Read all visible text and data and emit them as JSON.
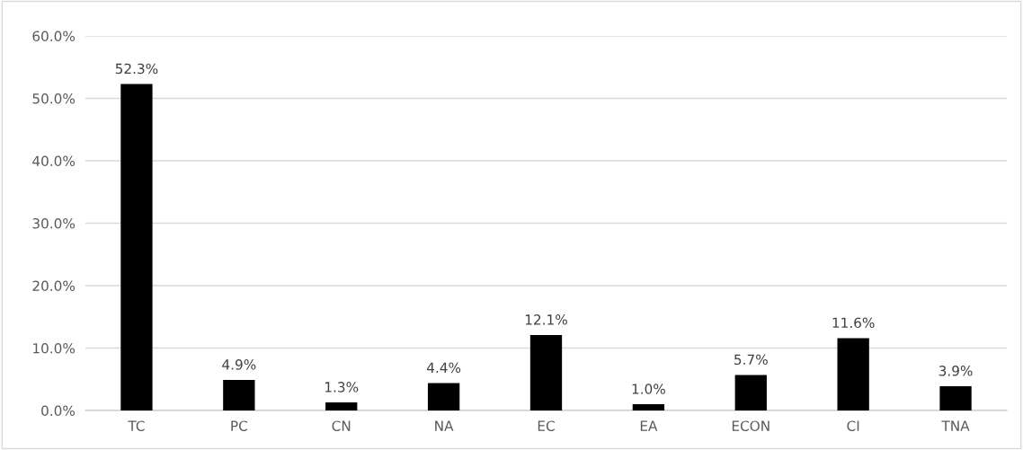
{
  "chart_data": {
    "type": "bar",
    "categories": [
      "TC",
      "PC",
      "CN",
      "NA",
      "EC",
      "EA",
      "ECON",
      "CI",
      "TNA"
    ],
    "values": [
      52.3,
      4.9,
      1.3,
      4.4,
      12.1,
      1.0,
      5.7,
      11.6,
      3.9
    ],
    "value_labels": [
      "52.3%",
      "4.9%",
      "1.3%",
      "4.4%",
      "12.1%",
      "1.0%",
      "5.7%",
      "11.6%",
      "3.9%"
    ],
    "color": "#000000",
    "ylim": [
      0,
      60
    ],
    "yticks": [
      {
        "value": 0,
        "label": "0.0%"
      },
      {
        "value": 10,
        "label": "10.0%"
      },
      {
        "value": 20,
        "label": "20.0%"
      },
      {
        "value": 30,
        "label": "30.0%"
      },
      {
        "value": 40,
        "label": "40.0%"
      },
      {
        "value": 50,
        "label": "50.0%"
      },
      {
        "value": 60,
        "label": "60.0%"
      }
    ],
    "grid": "y",
    "legend": false
  }
}
